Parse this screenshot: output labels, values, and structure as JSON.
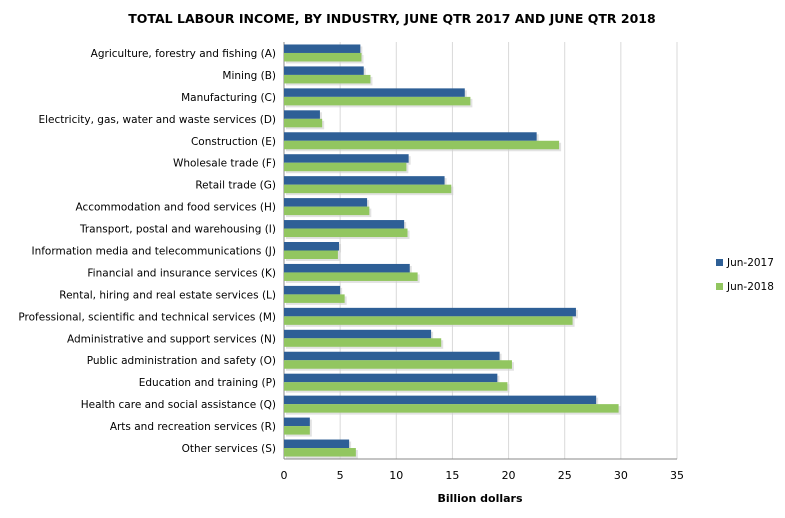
{
  "chart_data": {
    "type": "bar",
    "orientation": "horizontal",
    "title": "TOTAL LABOUR INCOME, BY INDUSTRY, JUNE QTR 2017 AND JUNE QTR 2018",
    "xlabel": "Billion dollars",
    "ylabel": "",
    "xlim": [
      0,
      35
    ],
    "xticks": [
      0,
      5,
      10,
      15,
      20,
      25,
      30,
      35
    ],
    "grid": true,
    "legend_position": "right",
    "categories": [
      "Agriculture, forestry and fishing (A)",
      "Mining (B)",
      "Manufacturing (C)",
      "Electricity, gas, water and waste services (D)",
      "Construction (E)",
      "Wholesale trade (F)",
      "Retail trade (G)",
      "Accommodation and food services (H)",
      "Transport, postal and warehousing (I)",
      "Information media and telecommunications (J)",
      "Financial and insurance services (K)",
      "Rental, hiring and real estate services (L)",
      "Professional, scientific and technical services (M)",
      "Administrative and support services (N)",
      "Public administration and safety (O)",
      "Education and training (P)",
      "Health care and social assistance (Q)",
      "Arts and recreation services (R)",
      "Other services (S)"
    ],
    "series": [
      {
        "name": "Jun-2017",
        "color": "#2E5F96",
        "values": [
          6.8,
          7.1,
          16.1,
          3.2,
          22.5,
          11.1,
          14.3,
          7.4,
          10.7,
          4.9,
          11.2,
          5.0,
          26.0,
          13.1,
          19.2,
          19.0,
          27.8,
          2.3,
          5.8
        ]
      },
      {
        "name": "Jun-2018",
        "color": "#92C660",
        "values": [
          6.9,
          7.7,
          16.6,
          3.4,
          24.5,
          10.9,
          14.9,
          7.6,
          11.0,
          4.8,
          11.9,
          5.4,
          25.7,
          14.0,
          20.3,
          19.9,
          29.8,
          2.3,
          6.4
        ]
      }
    ]
  }
}
